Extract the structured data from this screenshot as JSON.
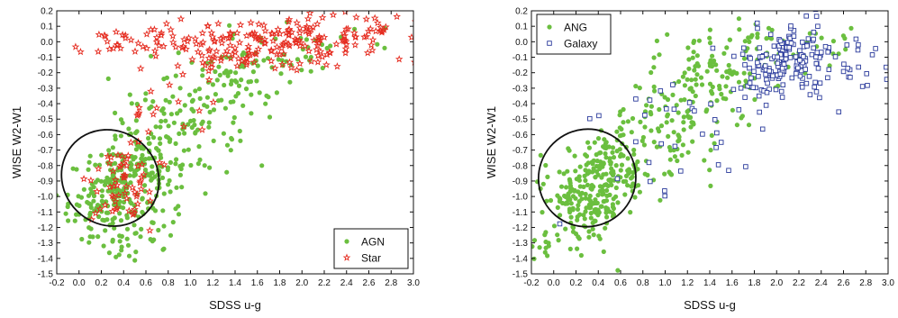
{
  "chart_data": [
    {
      "type": "scatter",
      "xlabel": "SDSS u-g",
      "ylabel": "WISE W2-W1",
      "xlim": [
        -0.2,
        3.0
      ],
      "ylim": [
        -1.5,
        0.2
      ],
      "x_ticks": [
        "-0.2",
        "0.0",
        "0.2",
        "0.4",
        "0.6",
        "0.8",
        "1.0",
        "1.2",
        "1.4",
        "1.6",
        "1.8",
        "2.0",
        "2.2",
        "2.4",
        "2.6",
        "2.8",
        "3.0"
      ],
      "y_ticks": [
        "0.2",
        "0.1",
        "0.0",
        "-0.1",
        "-0.2",
        "-0.3",
        "-0.4",
        "-0.5",
        "-0.6",
        "-0.7",
        "-0.8",
        "-0.9",
        "-1.0",
        "-1.1",
        "-1.2",
        "-1.3",
        "-1.4",
        "-1.5"
      ],
      "legend_position": "bottom-right",
      "ellipse": {
        "center": [
          0.28,
          -0.88
        ],
        "semi_axes": [
          0.42,
          0.29
        ],
        "rotation_deg": 50
      },
      "series": [
        {
          "name": "AGN",
          "marker": "filled-circle",
          "color": "#6bbf3f",
          "clusters": [
            {
              "center": [
                0.35,
                -0.95
              ],
              "spread": [
                0.22,
                0.15
              ],
              "count": 230
            },
            {
              "center": [
                0.8,
                -0.65
              ],
              "spread": [
                0.28,
                0.2
              ],
              "count": 110
            },
            {
              "center": [
                1.25,
                -0.35
              ],
              "spread": [
                0.3,
                0.17
              ],
              "count": 90
            },
            {
              "center": [
                1.8,
                -0.12
              ],
              "spread": [
                0.35,
                0.1
              ],
              "count": 45
            },
            {
              "center": [
                0.55,
                -1.25
              ],
              "spread": [
                0.25,
                0.08
              ],
              "count": 25
            }
          ]
        },
        {
          "name": "Star",
          "marker": "open-star",
          "color": "#e52a1e",
          "clusters": [
            {
              "center": [
                1.9,
                0.0
              ],
              "spread": [
                0.6,
                0.08
              ],
              "count": 210
            },
            {
              "center": [
                0.55,
                0.02
              ],
              "spread": [
                0.35,
                0.05
              ],
              "count": 40
            },
            {
              "center": [
                0.35,
                -0.95
              ],
              "spread": [
                0.18,
                0.12
              ],
              "count": 60
            },
            {
              "center": [
                0.8,
                -0.5
              ],
              "spread": [
                0.3,
                0.2
              ],
              "count": 20
            }
          ]
        }
      ]
    },
    {
      "type": "scatter",
      "xlabel": "SDSS u-g",
      "ylabel": "WISE W2-W1",
      "xlim": [
        -0.2,
        3.0
      ],
      "ylim": [
        -1.5,
        0.2
      ],
      "x_ticks": [
        "-0.2",
        "0.0",
        "0.2",
        "0.4",
        "0.6",
        "0.8",
        "1.0",
        "1.2",
        "1.4",
        "1.6",
        "1.8",
        "2.0",
        "2.2",
        "2.4",
        "2.6",
        "2.8",
        "3.0"
      ],
      "y_ticks": [
        "0.2",
        "0.1",
        "0.0",
        "-0.1",
        "-0.2",
        "-0.3",
        "-0.4",
        "-0.5",
        "-0.6",
        "-0.7",
        "-0.8",
        "-0.9",
        "-1.0",
        "-1.1",
        "-1.2",
        "-1.3",
        "-1.4",
        "-1.5"
      ],
      "legend_position": "top-left",
      "ellipse": {
        "center": [
          0.3,
          -0.88
        ],
        "semi_axes": [
          0.44,
          0.28
        ],
        "rotation_deg": 50
      },
      "series": [
        {
          "name": "ANG",
          "marker": "filled-circle",
          "color": "#6bbf3f",
          "clusters": [
            {
              "center": [
                0.3,
                -0.98
              ],
              "spread": [
                0.22,
                0.16
              ],
              "count": 260
            },
            {
              "center": [
                0.85,
                -0.65
              ],
              "spread": [
                0.28,
                0.2
              ],
              "count": 110
            },
            {
              "center": [
                1.35,
                -0.3
              ],
              "spread": [
                0.3,
                0.18
              ],
              "count": 100
            },
            {
              "center": [
                1.9,
                -0.1
              ],
              "spread": [
                0.4,
                0.12
              ],
              "count": 70
            }
          ]
        },
        {
          "name": "Galaxy",
          "marker": "open-square",
          "color": "#2a3a9c",
          "clusters": [
            {
              "center": [
                2.05,
                -0.12
              ],
              "spread": [
                0.2,
                0.12
              ],
              "count": 150
            },
            {
              "center": [
                2.5,
                -0.2
              ],
              "spread": [
                0.3,
                0.1
              ],
              "count": 40
            },
            {
              "center": [
                1.1,
                -0.55
              ],
              "spread": [
                0.4,
                0.25
              ],
              "count": 35
            }
          ]
        }
      ]
    }
  ]
}
